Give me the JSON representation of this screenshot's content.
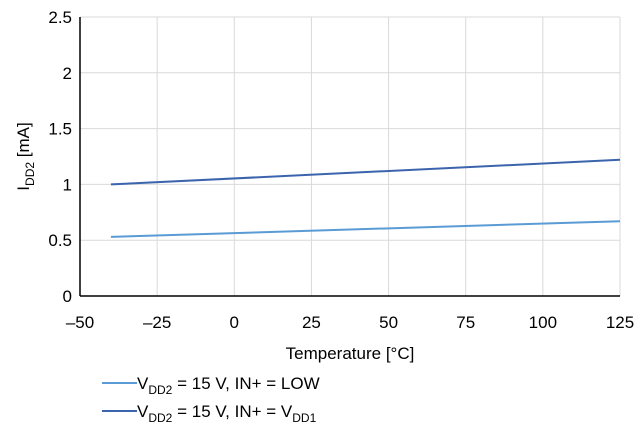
{
  "chart_data": {
    "type": "line",
    "title": "",
    "xlabel": "Temperature [°C]",
    "ylabel": {
      "main": "I",
      "sub": "DD2",
      "rest": " [mA]"
    },
    "xlim": [
      -50,
      125
    ],
    "ylim": [
      0,
      2.5
    ],
    "x_ticks": [
      "–50",
      "–25",
      "0",
      "25",
      "50",
      "75",
      "100",
      "125"
    ],
    "y_ticks": [
      "0",
      "0.5",
      "1",
      "1.5",
      "2",
      "2.5"
    ],
    "grid": true,
    "legend_position": "bottom-left",
    "series": [
      {
        "name": "VDD2 = 15 V, IN+ = LOW",
        "legend": [
          {
            "text": "V",
            "sub": false
          },
          {
            "text": "DD2",
            "sub": true
          },
          {
            "text": " = 15 V, IN+ = LOW",
            "sub": false
          }
        ],
        "color": "#5b9bd5",
        "x": [
          -40,
          125
        ],
        "y": [
          0.53,
          0.67
        ]
      },
      {
        "name": "VDD2 = 15 V, IN+ = VDD1",
        "legend": [
          {
            "text": "V",
            "sub": false
          },
          {
            "text": "DD2",
            "sub": true
          },
          {
            "text": " = 15 V, IN+ = V",
            "sub": false
          },
          {
            "text": "DD1",
            "sub": true
          }
        ],
        "color": "#3b64ad",
        "x": [
          -40,
          125
        ],
        "y": [
          1.0,
          1.22
        ]
      }
    ]
  }
}
